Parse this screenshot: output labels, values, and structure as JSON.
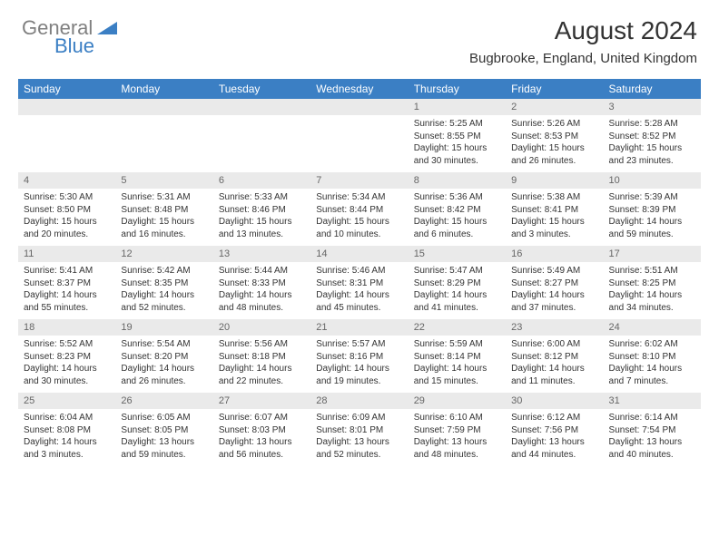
{
  "logo": {
    "text_gray": "General",
    "text_blue": "Blue"
  },
  "title": "August 2024",
  "location": "Bugbrooke, England, United Kingdom",
  "colors": {
    "header_bg": "#3b7fc4",
    "header_text": "#ffffff",
    "daynum_bg": "#eaeaea",
    "cell_border": "#3b7fc4",
    "logo_gray": "#808080",
    "logo_blue": "#3b7fc4"
  },
  "day_names": [
    "Sunday",
    "Monday",
    "Tuesday",
    "Wednesday",
    "Thursday",
    "Friday",
    "Saturday"
  ],
  "weeks": [
    [
      null,
      null,
      null,
      null,
      {
        "n": "1",
        "sr": "Sunrise: 5:25 AM",
        "ss": "Sunset: 8:55 PM",
        "d1": "Daylight: 15 hours",
        "d2": "and 30 minutes."
      },
      {
        "n": "2",
        "sr": "Sunrise: 5:26 AM",
        "ss": "Sunset: 8:53 PM",
        "d1": "Daylight: 15 hours",
        "d2": "and 26 minutes."
      },
      {
        "n": "3",
        "sr": "Sunrise: 5:28 AM",
        "ss": "Sunset: 8:52 PM",
        "d1": "Daylight: 15 hours",
        "d2": "and 23 minutes."
      }
    ],
    [
      {
        "n": "4",
        "sr": "Sunrise: 5:30 AM",
        "ss": "Sunset: 8:50 PM",
        "d1": "Daylight: 15 hours",
        "d2": "and 20 minutes."
      },
      {
        "n": "5",
        "sr": "Sunrise: 5:31 AM",
        "ss": "Sunset: 8:48 PM",
        "d1": "Daylight: 15 hours",
        "d2": "and 16 minutes."
      },
      {
        "n": "6",
        "sr": "Sunrise: 5:33 AM",
        "ss": "Sunset: 8:46 PM",
        "d1": "Daylight: 15 hours",
        "d2": "and 13 minutes."
      },
      {
        "n": "7",
        "sr": "Sunrise: 5:34 AM",
        "ss": "Sunset: 8:44 PM",
        "d1": "Daylight: 15 hours",
        "d2": "and 10 minutes."
      },
      {
        "n": "8",
        "sr": "Sunrise: 5:36 AM",
        "ss": "Sunset: 8:42 PM",
        "d1": "Daylight: 15 hours",
        "d2": "and 6 minutes."
      },
      {
        "n": "9",
        "sr": "Sunrise: 5:38 AM",
        "ss": "Sunset: 8:41 PM",
        "d1": "Daylight: 15 hours",
        "d2": "and 3 minutes."
      },
      {
        "n": "10",
        "sr": "Sunrise: 5:39 AM",
        "ss": "Sunset: 8:39 PM",
        "d1": "Daylight: 14 hours",
        "d2": "and 59 minutes."
      }
    ],
    [
      {
        "n": "11",
        "sr": "Sunrise: 5:41 AM",
        "ss": "Sunset: 8:37 PM",
        "d1": "Daylight: 14 hours",
        "d2": "and 55 minutes."
      },
      {
        "n": "12",
        "sr": "Sunrise: 5:42 AM",
        "ss": "Sunset: 8:35 PM",
        "d1": "Daylight: 14 hours",
        "d2": "and 52 minutes."
      },
      {
        "n": "13",
        "sr": "Sunrise: 5:44 AM",
        "ss": "Sunset: 8:33 PM",
        "d1": "Daylight: 14 hours",
        "d2": "and 48 minutes."
      },
      {
        "n": "14",
        "sr": "Sunrise: 5:46 AM",
        "ss": "Sunset: 8:31 PM",
        "d1": "Daylight: 14 hours",
        "d2": "and 45 minutes."
      },
      {
        "n": "15",
        "sr": "Sunrise: 5:47 AM",
        "ss": "Sunset: 8:29 PM",
        "d1": "Daylight: 14 hours",
        "d2": "and 41 minutes."
      },
      {
        "n": "16",
        "sr": "Sunrise: 5:49 AM",
        "ss": "Sunset: 8:27 PM",
        "d1": "Daylight: 14 hours",
        "d2": "and 37 minutes."
      },
      {
        "n": "17",
        "sr": "Sunrise: 5:51 AM",
        "ss": "Sunset: 8:25 PM",
        "d1": "Daylight: 14 hours",
        "d2": "and 34 minutes."
      }
    ],
    [
      {
        "n": "18",
        "sr": "Sunrise: 5:52 AM",
        "ss": "Sunset: 8:23 PM",
        "d1": "Daylight: 14 hours",
        "d2": "and 30 minutes."
      },
      {
        "n": "19",
        "sr": "Sunrise: 5:54 AM",
        "ss": "Sunset: 8:20 PM",
        "d1": "Daylight: 14 hours",
        "d2": "and 26 minutes."
      },
      {
        "n": "20",
        "sr": "Sunrise: 5:56 AM",
        "ss": "Sunset: 8:18 PM",
        "d1": "Daylight: 14 hours",
        "d2": "and 22 minutes."
      },
      {
        "n": "21",
        "sr": "Sunrise: 5:57 AM",
        "ss": "Sunset: 8:16 PM",
        "d1": "Daylight: 14 hours",
        "d2": "and 19 minutes."
      },
      {
        "n": "22",
        "sr": "Sunrise: 5:59 AM",
        "ss": "Sunset: 8:14 PM",
        "d1": "Daylight: 14 hours",
        "d2": "and 15 minutes."
      },
      {
        "n": "23",
        "sr": "Sunrise: 6:00 AM",
        "ss": "Sunset: 8:12 PM",
        "d1": "Daylight: 14 hours",
        "d2": "and 11 minutes."
      },
      {
        "n": "24",
        "sr": "Sunrise: 6:02 AM",
        "ss": "Sunset: 8:10 PM",
        "d1": "Daylight: 14 hours",
        "d2": "and 7 minutes."
      }
    ],
    [
      {
        "n": "25",
        "sr": "Sunrise: 6:04 AM",
        "ss": "Sunset: 8:08 PM",
        "d1": "Daylight: 14 hours",
        "d2": "and 3 minutes."
      },
      {
        "n": "26",
        "sr": "Sunrise: 6:05 AM",
        "ss": "Sunset: 8:05 PM",
        "d1": "Daylight: 13 hours",
        "d2": "and 59 minutes."
      },
      {
        "n": "27",
        "sr": "Sunrise: 6:07 AM",
        "ss": "Sunset: 8:03 PM",
        "d1": "Daylight: 13 hours",
        "d2": "and 56 minutes."
      },
      {
        "n": "28",
        "sr": "Sunrise: 6:09 AM",
        "ss": "Sunset: 8:01 PM",
        "d1": "Daylight: 13 hours",
        "d2": "and 52 minutes."
      },
      {
        "n": "29",
        "sr": "Sunrise: 6:10 AM",
        "ss": "Sunset: 7:59 PM",
        "d1": "Daylight: 13 hours",
        "d2": "and 48 minutes."
      },
      {
        "n": "30",
        "sr": "Sunrise: 6:12 AM",
        "ss": "Sunset: 7:56 PM",
        "d1": "Daylight: 13 hours",
        "d2": "and 44 minutes."
      },
      {
        "n": "31",
        "sr": "Sunrise: 6:14 AM",
        "ss": "Sunset: 7:54 PM",
        "d1": "Daylight: 13 hours",
        "d2": "and 40 minutes."
      }
    ]
  ]
}
